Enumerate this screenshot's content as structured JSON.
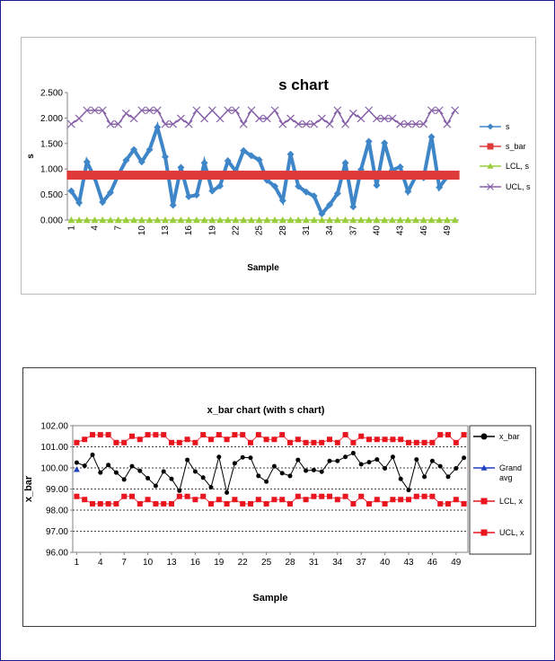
{
  "chart_data": [
    {
      "type": "line",
      "title": "s chart",
      "xlabel": "Sample",
      "ylabel": "s",
      "ylim": [
        0,
        2.5
      ],
      "yticks": [
        "0.000",
        "0.500",
        "1.000",
        "1.500",
        "2.000",
        "2.500"
      ],
      "xticks": [
        "1",
        "4",
        "7",
        "10",
        "13",
        "16",
        "19",
        "22",
        "25",
        "28",
        "31",
        "34",
        "37",
        "40",
        "43",
        "46",
        "49"
      ],
      "legend_position": "right",
      "grid": false,
      "series": [
        {
          "name": "s",
          "color": "#3f86c8",
          "marker": "diamond",
          "values": [
            0.57,
            0.34,
            1.14,
            0.82,
            0.35,
            0.54,
            0.88,
            1.17,
            1.38,
            1.14,
            1.38,
            1.82,
            1.24,
            0.29,
            1.03,
            0.46,
            0.49,
            1.12,
            0.57,
            0.67,
            1.16,
            0.96,
            1.36,
            1.26,
            1.18,
            0.78,
            0.66,
            0.38,
            1.29,
            0.66,
            0.55,
            0.47,
            0.12,
            0.3,
            0.52,
            1.12,
            0.26,
            0.99,
            1.54,
            0.68,
            1.51,
            0.98,
            1.04,
            0.56,
            0.86,
            0.83,
            1.63,
            0.64,
            0.85,
            0.86
          ]
        },
        {
          "name": "s_bar",
          "color": "#e03b3b",
          "marker": "square",
          "values": [
            0.88,
            0.88,
            0.88,
            0.88,
            0.88,
            0.88,
            0.88,
            0.88,
            0.88,
            0.88,
            0.88,
            0.88,
            0.88,
            0.88,
            0.88,
            0.88,
            0.88,
            0.88,
            0.88,
            0.88,
            0.88,
            0.88,
            0.88,
            0.88,
            0.88,
            0.88,
            0.88,
            0.88,
            0.88,
            0.88,
            0.88,
            0.88,
            0.88,
            0.88,
            0.88,
            0.88,
            0.88,
            0.88,
            0.88,
            0.88,
            0.88,
            0.88,
            0.88,
            0.88,
            0.88,
            0.88,
            0.88,
            0.88,
            0.88,
            0.88
          ]
        },
        {
          "name": "LCL, s",
          "color": "#9acd3c",
          "marker": "triangle",
          "values": [
            0,
            0,
            0,
            0,
            0,
            0,
            0,
            0,
            0,
            0,
            0,
            0,
            0,
            0,
            0,
            0,
            0,
            0,
            0,
            0,
            0,
            0,
            0,
            0,
            0,
            0,
            0,
            0,
            0,
            0,
            0,
            0,
            0,
            0,
            0,
            0,
            0,
            0,
            0,
            0,
            0,
            0,
            0,
            0,
            0,
            0,
            0,
            0,
            0,
            0
          ]
        },
        {
          "name": "UCL, s",
          "color": "#8660a8",
          "marker": "x",
          "values": [
            1.88,
            1.99,
            2.15,
            2.15,
            2.15,
            1.88,
            1.88,
            2.09,
            1.99,
            2.15,
            2.15,
            2.15,
            1.88,
            1.88,
            1.99,
            1.88,
            2.15,
            1.99,
            2.15,
            1.99,
            2.15,
            2.15,
            1.88,
            2.15,
            1.99,
            1.99,
            2.15,
            1.88,
            1.99,
            1.88,
            1.88,
            1.88,
            1.99,
            1.88,
            2.15,
            1.88,
            2.09,
            1.99,
            2.15,
            1.99,
            1.99,
            1.99,
            1.88,
            1.88,
            1.88,
            1.88,
            2.15,
            2.15,
            1.88,
            2.15
          ]
        }
      ]
    },
    {
      "type": "line",
      "title": "x_bar chart (with s chart)",
      "xlabel": "Sample",
      "ylabel": "x_bar",
      "ylim": [
        96,
        102
      ],
      "yticks": [
        "96.00",
        "97.00",
        "98.00",
        "99.00",
        "100.00",
        "101.00",
        "102.00"
      ],
      "xticks": [
        "1",
        "4",
        "7",
        "10",
        "13",
        "16",
        "19",
        "22",
        "25",
        "28",
        "31",
        "34",
        "37",
        "40",
        "43",
        "46",
        "49"
      ],
      "legend_position": "right",
      "grid": true,
      "series": [
        {
          "name": "x_bar",
          "color": "#000000",
          "marker": "circle",
          "values": [
            100.25,
            100.1,
            100.62,
            99.78,
            100.14,
            99.78,
            99.45,
            100.08,
            99.86,
            99.51,
            99.15,
            99.83,
            99.48,
            98.92,
            100.38,
            99.83,
            99.54,
            99.08,
            100.52,
            98.83,
            100.22,
            100.5,
            100.48,
            99.62,
            99.35,
            100.08,
            99.75,
            99.62,
            100.38,
            99.87,
            99.9,
            99.82,
            100.33,
            100.33,
            100.52,
            100.7,
            100.17,
            100.27,
            100.4,
            99.98,
            100.52,
            99.48,
            98.95,
            100.4,
            99.58,
            100.33,
            100.08,
            99.58,
            99.98,
            100.48
          ]
        },
        {
          "name": "Grand avg",
          "color": "#1f3fbf",
          "marker": "triangle",
          "values": [
            99.93
          ]
        },
        {
          "name": "LCL, x",
          "color": "#e8141e",
          "marker": "square",
          "values": [
            98.65,
            98.5,
            98.3,
            98.3,
            98.3,
            98.3,
            98.65,
            98.65,
            98.3,
            98.5,
            98.3,
            98.3,
            98.3,
            98.65,
            98.65,
            98.5,
            98.65,
            98.3,
            98.5,
            98.3,
            98.5,
            98.3,
            98.3,
            98.5,
            98.3,
            98.5,
            98.5,
            98.3,
            98.65,
            98.5,
            98.65,
            98.65,
            98.65,
            98.5,
            98.65,
            98.3,
            98.65,
            98.3,
            98.5,
            98.3,
            98.5,
            98.5,
            98.5,
            98.65,
            98.65,
            98.65,
            98.3,
            98.3,
            98.5,
            98.3
          ]
        },
        {
          "name": "UCL, x",
          "color": "#e8141e",
          "marker": "square",
          "values": [
            101.2,
            101.35,
            101.57,
            101.57,
            101.57,
            101.2,
            101.2,
            101.5,
            101.35,
            101.57,
            101.57,
            101.57,
            101.2,
            101.2,
            101.35,
            101.2,
            101.57,
            101.35,
            101.57,
            101.35,
            101.57,
            101.57,
            101.2,
            101.57,
            101.35,
            101.35,
            101.57,
            101.2,
            101.35,
            101.2,
            101.2,
            101.2,
            101.35,
            101.2,
            101.57,
            101.2,
            101.5,
            101.35,
            101.35,
            101.35,
            101.35,
            101.35,
            101.2,
            101.2,
            101.2,
            101.2,
            101.57,
            101.57,
            101.2,
            101.57
          ]
        }
      ]
    }
  ]
}
